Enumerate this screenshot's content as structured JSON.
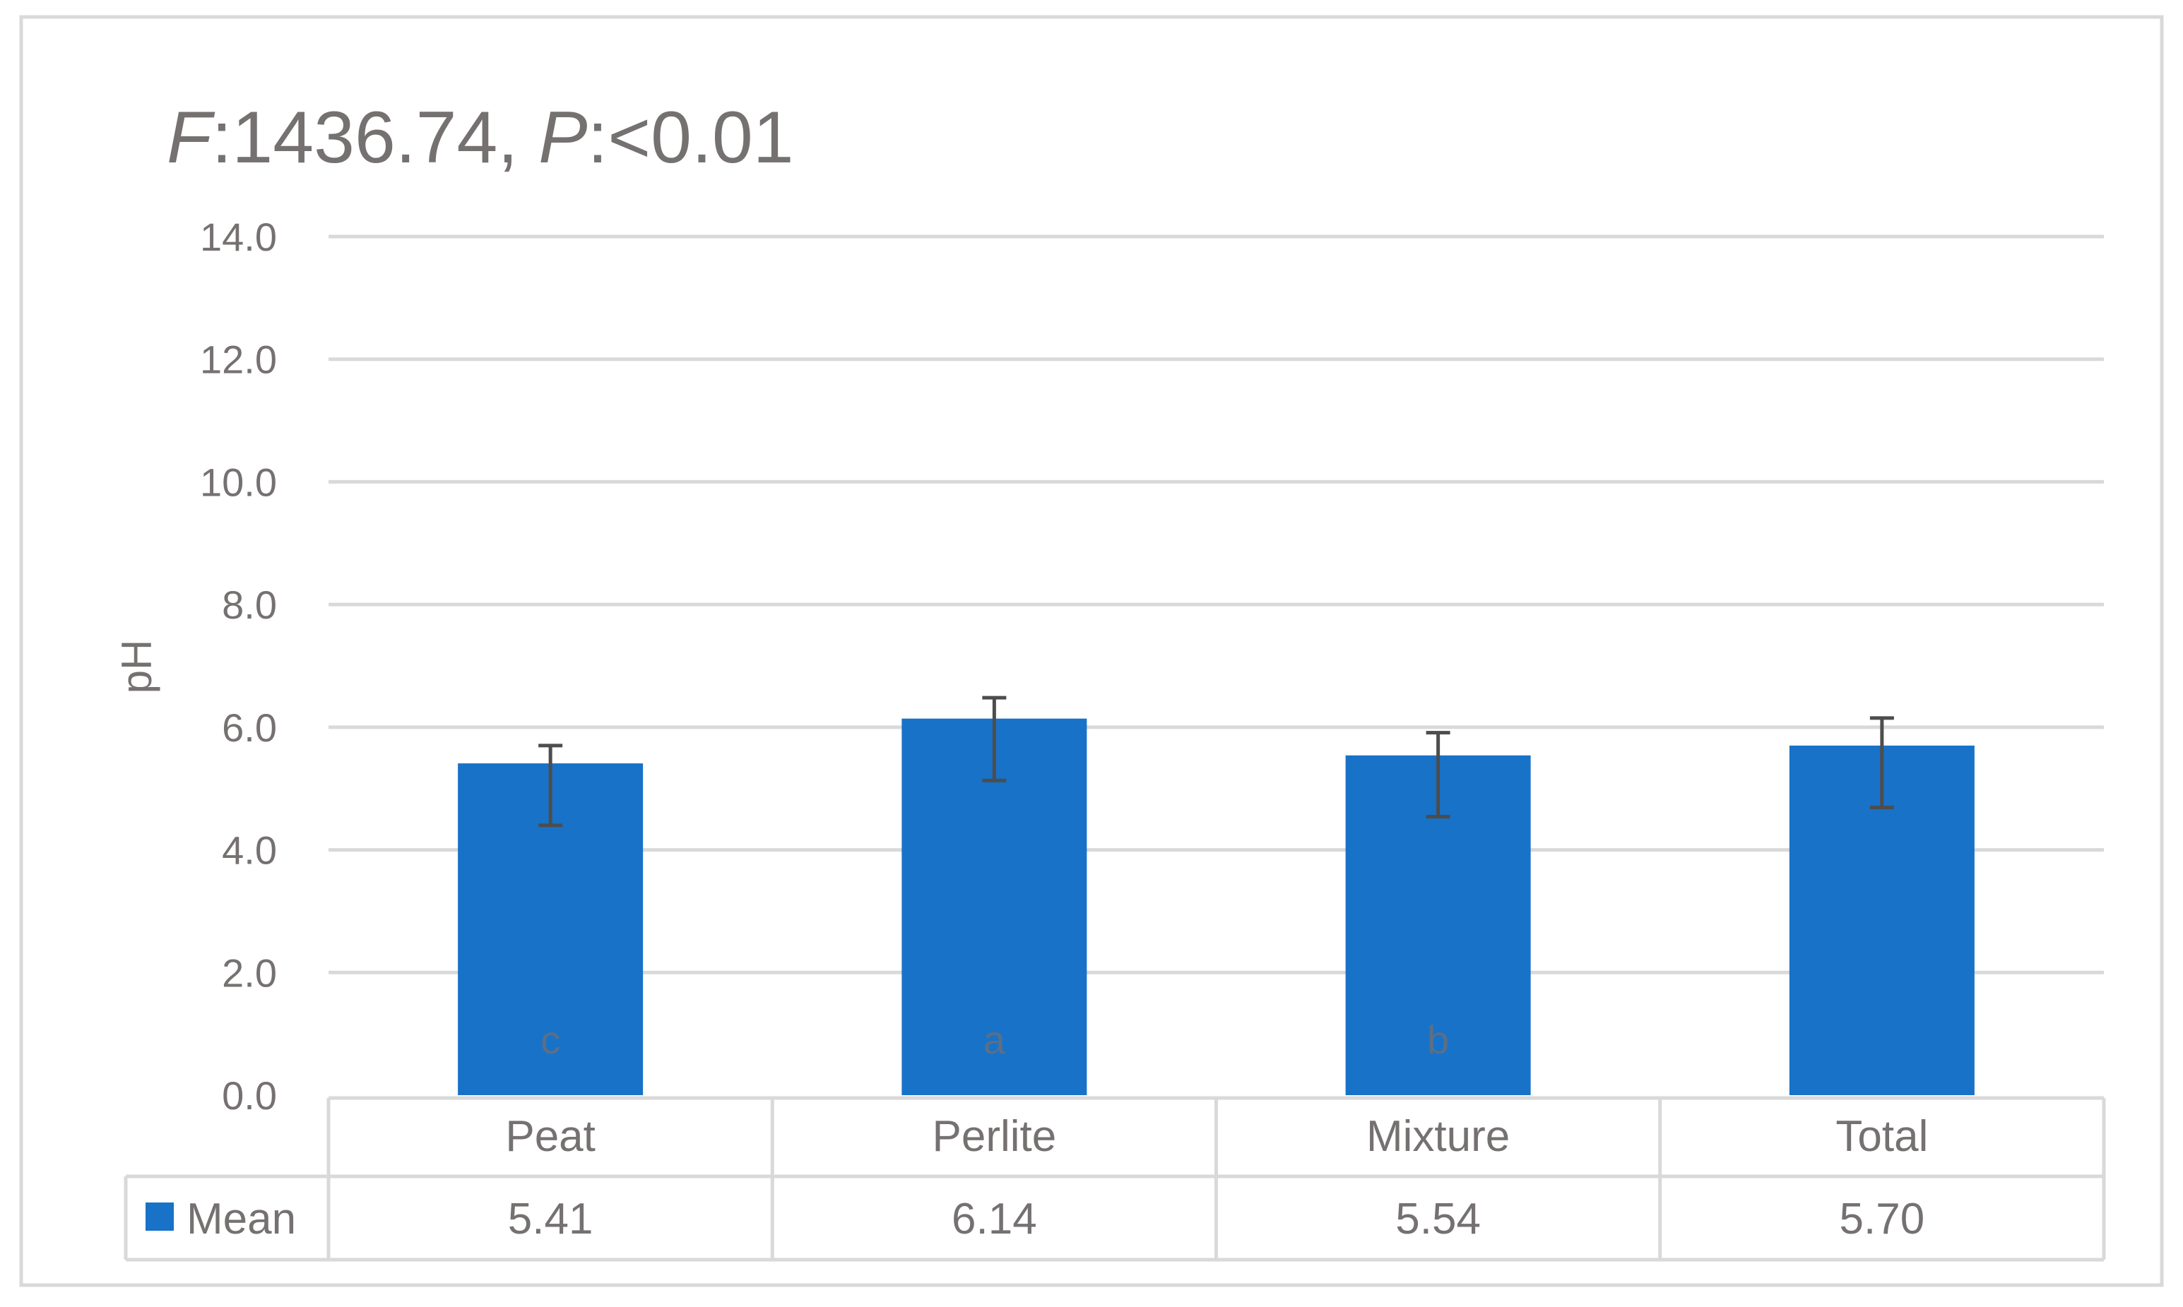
{
  "chart_data": {
    "type": "bar",
    "title_parts": {
      "f_symbol": "F",
      "f_text": ":1436.74, ",
      "p_symbol": "P",
      "p_text": ":<0.01"
    },
    "ylabel": "pH",
    "ylim": [
      0,
      14
    ],
    "y_ticks": [
      "0.0",
      "2.0",
      "4.0",
      "6.0",
      "8.0",
      "10.0",
      "12.0",
      "14.0"
    ],
    "categories": [
      "Peat",
      "Perlite",
      "Mixture",
      "Total"
    ],
    "series": [
      {
        "name": "Mean",
        "values": [
          5.41,
          6.14,
          5.54,
          5.7
        ],
        "value_labels": [
          "5.41",
          "6.14",
          "5.54",
          "5.70"
        ],
        "error_low": [
          4.4,
          5.13,
          4.54,
          4.69
        ],
        "error_high": [
          5.7,
          6.48,
          5.91,
          6.15
        ],
        "color": "#1872c8"
      }
    ],
    "significance_letters": [
      "c",
      "a",
      "b",
      ""
    ],
    "grid": true,
    "legend": "data table",
    "colors": {
      "bar": "#1872c8",
      "grid": "#d9d9d9",
      "text": "#767171",
      "error_bar": "#4d4d4d"
    }
  }
}
